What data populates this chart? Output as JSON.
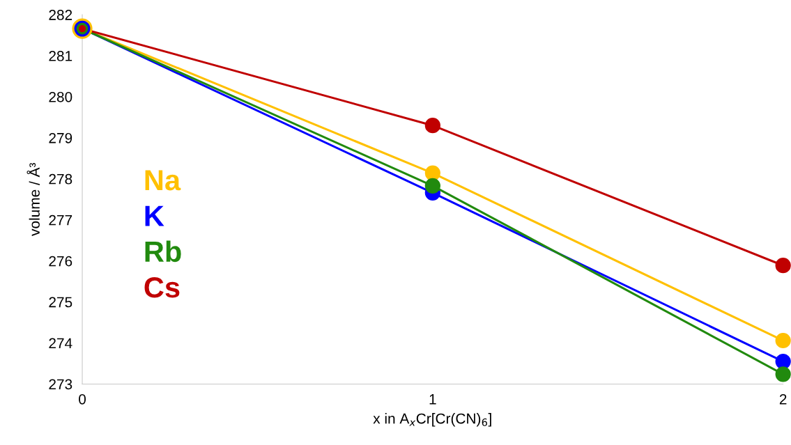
{
  "chart_data": {
    "type": "line",
    "xlabel": "x in A$_{x}$Cr[Cr(CN)$_{6}$]",
    "ylabel": "volume / Å³",
    "x": [
      0,
      1,
      2
    ],
    "xlim": [
      0,
      2
    ],
    "xticks": [
      0,
      1,
      2
    ],
    "ylim": [
      273,
      282
    ],
    "yticks": [
      273,
      274,
      275,
      276,
      277,
      278,
      279,
      280,
      281,
      282
    ],
    "grid": false,
    "legend": "left",
    "marker": "circle",
    "line_style": "solid",
    "series": [
      {
        "name": "Na",
        "color": "#ffc000",
        "values": [
          281.66,
          278.14,
          274.06
        ]
      },
      {
        "name": "K",
        "color": "#0000ff",
        "values": [
          281.66,
          277.66,
          273.55
        ]
      },
      {
        "name": "Rb",
        "color": "#218a0e",
        "values": [
          281.66,
          277.83,
          273.24
        ]
      },
      {
        "name": "Cs",
        "color": "#c00000",
        "values": [
          281.66,
          279.3,
          275.89
        ]
      }
    ]
  }
}
